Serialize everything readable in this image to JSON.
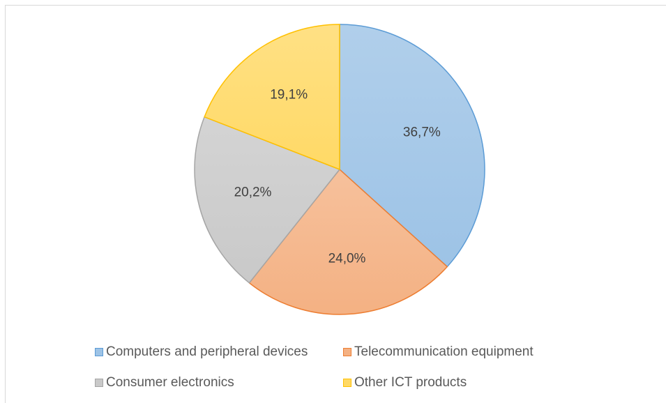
{
  "chart_data": {
    "type": "pie",
    "title": "",
    "slices": [
      {
        "name": "Computers and peripheral devices",
        "value": 36.7,
        "label": "36,7%",
        "fill": "#9dc3e6",
        "stroke": "#5b9bd5"
      },
      {
        "name": "Telecommunication equipment",
        "value": 24.0,
        "label": "24,0%",
        "fill": "#f4b183",
        "stroke": "#ed7d31"
      },
      {
        "name": "Consumer electronics",
        "value": 20.2,
        "label": "20,2%",
        "fill": "#c9c9c9",
        "stroke": "#a5a5a5"
      },
      {
        "name": "Other ICT products",
        "value": 19.1,
        "label": "19,1%",
        "fill": "#ffd966",
        "stroke": "#ffc000"
      }
    ],
    "legend": {
      "position": "bottom"
    }
  },
  "legend": {
    "item_0": "Computers and peripheral devices",
    "item_1": "Telecommunication equipment",
    "item_2": "Consumer electronics",
    "item_3": "Other ICT products"
  }
}
